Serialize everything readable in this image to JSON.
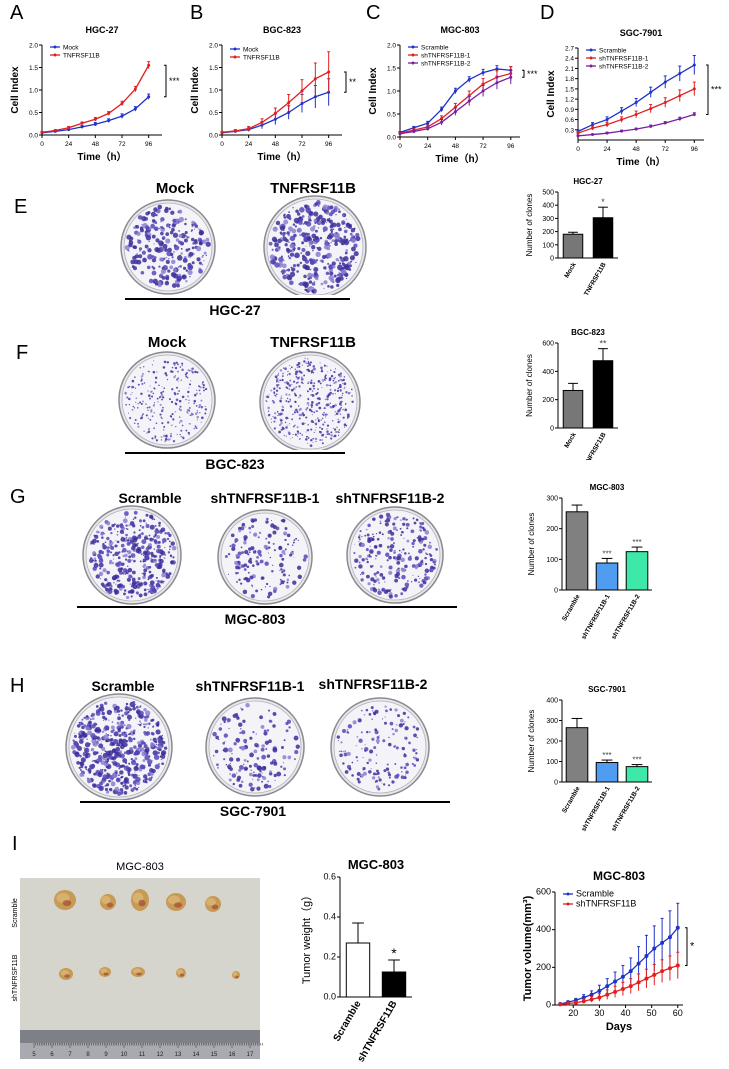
{
  "panels": {
    "A": "A",
    "B": "B",
    "C": "C",
    "D": "D",
    "E": "E",
    "F": "F",
    "G": "G",
    "H": "H",
    "I": "I"
  },
  "growth_common": {
    "ylabel": "Cell Index",
    "xlabel": "Time（h）",
    "x_ticks": [
      "0",
      "24",
      "48",
      "72",
      "96"
    ]
  },
  "chart_data": [
    {
      "type": "line",
      "panel": "A",
      "title": "HGC-27",
      "x": [
        0,
        12,
        24,
        36,
        48,
        60,
        72,
        84,
        96
      ],
      "series": [
        {
          "name": "Mock",
          "color": "#1f33c9",
          "values": [
            0.05,
            0.08,
            0.12,
            0.18,
            0.24,
            0.32,
            0.42,
            0.58,
            0.85
          ],
          "err": [
            0.02,
            0.02,
            0.03,
            0.03,
            0.04,
            0.04,
            0.05,
            0.05,
            0.06
          ]
        },
        {
          "name": "TNFRSF11B",
          "color": "#e02020",
          "values": [
            0.06,
            0.1,
            0.16,
            0.26,
            0.35,
            0.48,
            0.7,
            1.02,
            1.55
          ],
          "err": [
            0.02,
            0.02,
            0.03,
            0.03,
            0.04,
            0.04,
            0.05,
            0.06,
            0.08
          ]
        }
      ],
      "ylim": [
        0,
        2.0
      ],
      "y_ticks": [
        "0.0",
        "0.5",
        "1.0",
        "1.5",
        "2.0"
      ],
      "annotation": "***"
    },
    {
      "type": "line",
      "panel": "B",
      "title": "BGC-823",
      "x": [
        0,
        12,
        24,
        36,
        48,
        60,
        72,
        84,
        96
      ],
      "series": [
        {
          "name": "Mock",
          "color": "#1f33c9",
          "values": [
            0.05,
            0.08,
            0.12,
            0.22,
            0.35,
            0.5,
            0.7,
            0.85,
            0.95
          ],
          "err": [
            0.02,
            0.03,
            0.04,
            0.08,
            0.12,
            0.15,
            0.2,
            0.25,
            0.3
          ]
        },
        {
          "name": "TNFRSF11B",
          "color": "#e02020",
          "values": [
            0.06,
            0.09,
            0.14,
            0.28,
            0.48,
            0.72,
            0.98,
            1.25,
            1.4
          ],
          "err": [
            0.02,
            0.03,
            0.05,
            0.08,
            0.12,
            0.18,
            0.25,
            0.35,
            0.45
          ]
        }
      ],
      "ylim": [
        0,
        2.0
      ],
      "y_ticks": [
        "0.0",
        "0.5",
        "1.0",
        "1.5",
        "2.0"
      ],
      "annotation": "**"
    },
    {
      "type": "line",
      "panel": "C",
      "title": "MGC-803",
      "x": [
        0,
        12,
        24,
        36,
        48,
        60,
        72,
        84,
        96
      ],
      "series": [
        {
          "name": "Scramble",
          "color": "#1f33c9",
          "values": [
            0.1,
            0.2,
            0.3,
            0.6,
            1.0,
            1.25,
            1.4,
            1.48,
            1.45
          ],
          "err": [
            0.02,
            0.03,
            0.04,
            0.05,
            0.06,
            0.06,
            0.07,
            0.07,
            0.08
          ]
        },
        {
          "name": "shTNFRSF11B-1",
          "color": "#e02020",
          "values": [
            0.08,
            0.15,
            0.22,
            0.4,
            0.65,
            0.9,
            1.15,
            1.3,
            1.38
          ],
          "err": [
            0.02,
            0.03,
            0.04,
            0.06,
            0.08,
            0.1,
            0.12,
            0.14,
            0.15
          ]
        },
        {
          "name": "shTNFRSF11B-2",
          "color": "#7a1fa2",
          "values": [
            0.07,
            0.12,
            0.18,
            0.32,
            0.55,
            0.78,
            1.0,
            1.18,
            1.3
          ],
          "err": [
            0.02,
            0.03,
            0.04,
            0.06,
            0.08,
            0.1,
            0.12,
            0.14,
            0.15
          ]
        }
      ],
      "ylim": [
        0,
        2.0
      ],
      "y_ticks": [
        "0.0",
        "0.5",
        "1.0",
        "1.5",
        "2.0"
      ],
      "annotation": "***"
    },
    {
      "type": "line",
      "panel": "D",
      "title": "SGC-7901",
      "x": [
        0,
        12,
        24,
        36,
        48,
        60,
        72,
        84,
        96
      ],
      "series": [
        {
          "name": "Scramble",
          "color": "#1f33c9",
          "values": [
            0.25,
            0.45,
            0.6,
            0.85,
            1.1,
            1.4,
            1.7,
            1.95,
            2.2
          ],
          "err": [
            0.05,
            0.06,
            0.08,
            0.1,
            0.12,
            0.15,
            0.18,
            0.22,
            0.28
          ]
        },
        {
          "name": "shTNFRSF11B-1",
          "color": "#e02020",
          "values": [
            0.2,
            0.35,
            0.45,
            0.6,
            0.75,
            0.92,
            1.1,
            1.3,
            1.5
          ],
          "err": [
            0.05,
            0.06,
            0.07,
            0.08,
            0.1,
            0.12,
            0.14,
            0.17,
            0.2
          ]
        },
        {
          "name": "shTNFRSF11B-2",
          "color": "#7a1fa2",
          "values": [
            0.12,
            0.16,
            0.2,
            0.26,
            0.32,
            0.4,
            0.5,
            0.62,
            0.75
          ],
          "err": [
            0.02,
            0.02,
            0.03,
            0.03,
            0.03,
            0.04,
            0.04,
            0.05,
            0.05
          ]
        }
      ],
      "ylim": [
        0,
        2.7
      ],
      "y_ticks": [
        "0.3",
        "0.6",
        "0.9",
        "1.2",
        "1.5",
        "1.8",
        "2.1",
        "2.4",
        "2.7"
      ],
      "annotation": "***"
    },
    {
      "type": "bar",
      "panel": "E",
      "title": "HGC-27",
      "categories": [
        "Mock",
        "TNFRSF11B"
      ],
      "values": [
        180,
        305
      ],
      "err": [
        15,
        80
      ],
      "colors": [
        "#777777",
        "#000000"
      ],
      "ylabel": "Number of clones",
      "ylim": [
        0,
        500
      ],
      "y_ticks": [
        "0",
        "100",
        "200",
        "300",
        "400",
        "500"
      ],
      "significance": [
        "",
        "*"
      ]
    },
    {
      "type": "bar",
      "panel": "F",
      "title": "BGC-823",
      "categories": [
        "Mock",
        "TNFRSF11B"
      ],
      "values": [
        265,
        475
      ],
      "err": [
        50,
        85
      ],
      "colors": [
        "#777777",
        "#000000"
      ],
      "ylabel": "Number of clones",
      "ylim": [
        0,
        600
      ],
      "y_ticks": [
        "0",
        "200",
        "400",
        "600"
      ],
      "significance": [
        "",
        "**"
      ]
    },
    {
      "type": "bar",
      "panel": "G",
      "title": "MGC-803",
      "categories": [
        "Scramble",
        "shTNFRSF11B-1",
        "shTNFRSF11B-2"
      ],
      "values": [
        255,
        88,
        125
      ],
      "err": [
        22,
        15,
        15
      ],
      "colors": [
        "#808080",
        "#4f9cf0",
        "#3ee8a8"
      ],
      "ylabel": "Number of clones",
      "ylim": [
        0,
        300
      ],
      "y_ticks": [
        "0",
        "100",
        "200",
        "300"
      ],
      "significance": [
        "",
        "***",
        "***"
      ]
    },
    {
      "type": "bar",
      "panel": "H",
      "title": "SGC-7901",
      "categories": [
        "Scramble",
        "shTNFRSF11B-1",
        "shTNFRSF11B-2"
      ],
      "values": [
        265,
        95,
        75
      ],
      "err": [
        45,
        12,
        10
      ],
      "colors": [
        "#808080",
        "#4f9cf0",
        "#3ee8a8"
      ],
      "ylabel": "Number of clones",
      "ylim": [
        0,
        400
      ],
      "y_ticks": [
        "0",
        "100",
        "200",
        "300",
        "400"
      ],
      "significance": [
        "",
        "***",
        "***"
      ]
    },
    {
      "type": "bar",
      "panel": "I",
      "title": "MGC-803",
      "categories": [
        "Scramble",
        "shTNFRSF11B"
      ],
      "values": [
        0.27,
        0.125
      ],
      "err": [
        0.1,
        0.06
      ],
      "colors": [
        "#ffffff",
        "#000000"
      ],
      "ylabel": "Tumor weight（g）",
      "ylim": [
        0,
        0.6
      ],
      "y_ticks": [
        "0.0",
        "0.2",
        "0.4",
        "0.6"
      ],
      "significance": [
        "",
        "*"
      ]
    },
    {
      "type": "line",
      "panel": "I",
      "title": "MGC-803",
      "x": [
        15,
        18,
        21,
        24,
        27,
        30,
        33,
        36,
        39,
        42,
        45,
        48,
        51,
        54,
        57,
        60
      ],
      "series": [
        {
          "name": "Scramble",
          "color": "#1f33c9",
          "values": [
            5,
            15,
            25,
            40,
            55,
            75,
            100,
            125,
            150,
            180,
            220,
            260,
            300,
            330,
            360,
            410
          ],
          "err": [
            3,
            6,
            10,
            15,
            20,
            30,
            40,
            50,
            60,
            70,
            90,
            110,
            120,
            130,
            140,
            130
          ]
        },
        {
          "name": "shTNFRSF11B",
          "color": "#e02020",
          "values": [
            3,
            8,
            12,
            20,
            30,
            40,
            55,
            70,
            85,
            100,
            120,
            140,
            160,
            180,
            195,
            210
          ],
          "err": [
            2,
            5,
            8,
            12,
            15,
            20,
            25,
            30,
            35,
            40,
            45,
            50,
            55,
            60,
            65,
            70
          ]
        }
      ],
      "xlabel": "Days",
      "ylabel": "Tumor volume(mm³)",
      "ylim": [
        0,
        600
      ],
      "y_ticks": [
        "0",
        "200",
        "400",
        "600"
      ],
      "x_ticks": [
        "20",
        "30",
        "40",
        "50",
        "60"
      ],
      "annotation": "*"
    }
  ],
  "plates": {
    "E": {
      "labels": [
        "Mock",
        "TNFRSF11B"
      ],
      "cell_line": "HGC-27"
    },
    "F": {
      "labels": [
        "Mock",
        "TNFRSF11B"
      ],
      "cell_line": "BGC-823"
    },
    "G": {
      "labels": [
        "Scramble",
        "shTNFRSF11B-1",
        "shTNFRSF11B-2"
      ],
      "cell_line": "MGC-803"
    },
    "H": {
      "labels": [
        "Scramble",
        "shTNFRSF11B-1",
        "shTNFRSF11B-2"
      ],
      "cell_line": "SGC-7901"
    }
  },
  "tumor_photo": {
    "title": "MGC-803",
    "row_labels": [
      "Scramble",
      "shTNFRSF11B"
    ],
    "ruler_numbers": [
      "5",
      "6",
      "7",
      "8",
      "9",
      "10",
      "11",
      "12",
      "13",
      "14",
      "15",
      "16",
      "17"
    ]
  }
}
